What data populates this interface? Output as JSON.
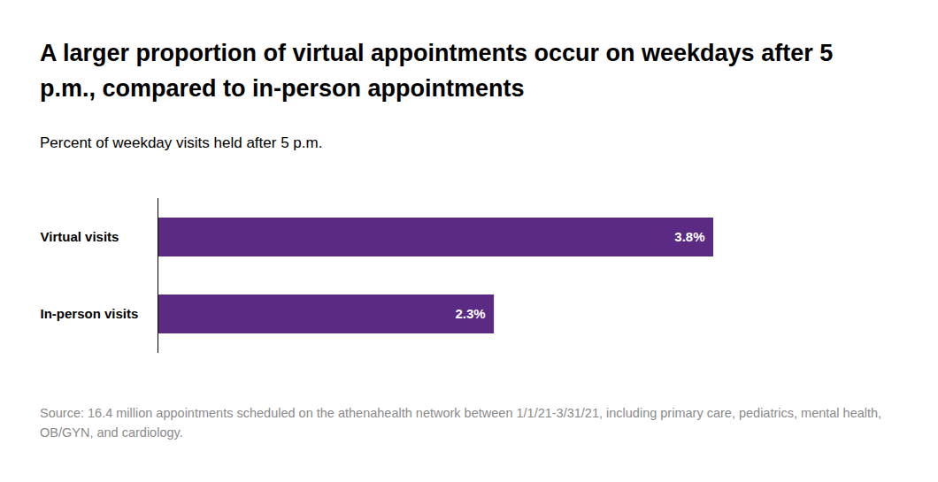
{
  "chart_data": {
    "type": "bar",
    "title": "A larger proportion of virtual appointments occur on weekdays after 5 p.m., compared to in-person appointments",
    "subtitle": "Percent of weekday visits held after 5 p.m.",
    "caption": "Source: 16.4 million appointments scheduled on the athenahealth network between 1/1/21-3/31/21, including primary care, pediatrics, mental health, OB/GYN, and cardiology.",
    "categories": [
      "Virtual visits",
      "In-person visits"
    ],
    "values": [
      3.8,
      2.3
    ],
    "value_labels": [
      "3.8%",
      "2.3%"
    ],
    "color": "#5b2a82",
    "orientation": "horizontal",
    "xlim": [
      0,
      3.8
    ],
    "data_labels": true,
    "tick_labels": "y",
    "grid": false
  }
}
